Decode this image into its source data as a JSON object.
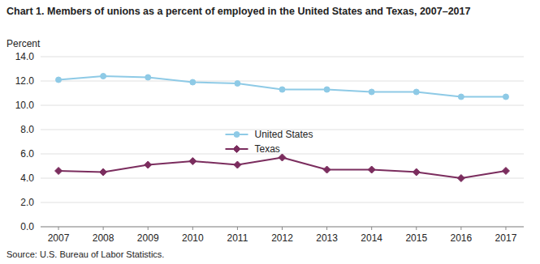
{
  "chart_data": {
    "type": "line",
    "title": "Chart 1. Members of unions as a percent of employed in the United States and Texas, 2007–2017",
    "y_label": "Percent",
    "annotations": [
      "Source: U.S. Bureau of Labor Statistics."
    ],
    "x": [
      2007,
      2008,
      2009,
      2010,
      2011,
      2012,
      2013,
      2014,
      2015,
      2016,
      2017
    ],
    "xlim": [
      2006.6,
      2017.4
    ],
    "xticks": [
      2007,
      2008,
      2009,
      2010,
      2011,
      2012,
      2013,
      2014,
      2015,
      2016,
      2017
    ],
    "ylim": [
      0,
      14.0
    ],
    "yticks": [
      {
        "value": 0.0,
        "label": "0.0"
      },
      {
        "value": 2.0,
        "label": "2.0"
      },
      {
        "value": 4.0,
        "label": "4.0"
      },
      {
        "value": 6.0,
        "label": "6.0"
      },
      {
        "value": 8.0,
        "label": "8.0"
      },
      {
        "value": 10.0,
        "label": "10.0"
      },
      {
        "value": 12.0,
        "label": "12.0"
      },
      {
        "value": 14.0,
        "label": "14.0"
      }
    ],
    "grid": true,
    "legend": "center",
    "series": [
      {
        "name": "United States",
        "color": "#8ECAE6",
        "marker": "circle",
        "line_style": "solid",
        "values": [
          12.1,
          12.4,
          12.3,
          11.9,
          11.8,
          11.3,
          11.3,
          11.1,
          11.1,
          10.7,
          10.7
        ]
      },
      {
        "name": "Texas",
        "color": "#7B2D5E",
        "marker": "diamond",
        "line_style": "solid",
        "values": [
          4.6,
          4.5,
          5.1,
          5.4,
          5.1,
          5.7,
          4.7,
          4.7,
          4.5,
          4.0,
          4.6
        ]
      }
    ]
  }
}
